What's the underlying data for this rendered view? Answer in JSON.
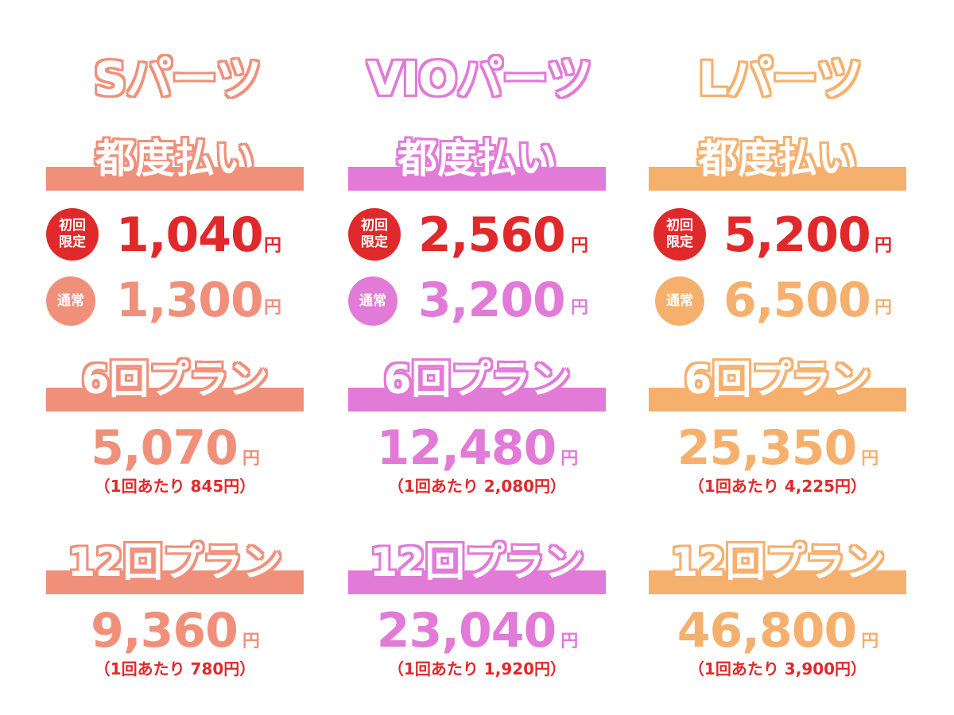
{
  "columns": [
    {
      "title": "Sパーツ",
      "color": "#f0907a",
      "pay_label": "都度払い",
      "first_badge": [
        "初回",
        "限定"
      ],
      "first_price": "1,040",
      "normal_badge": "通常",
      "normal_price": "1,300",
      "yen": "円",
      "plan6_label": "6回プラン",
      "plan6_price": "5,070",
      "plan6_per": "（1回あたり 845円）",
      "plan12_label": "12回プラン",
      "plan12_price": "9,360",
      "plan12_per": "（1回あたり 780円）"
    },
    {
      "title": "VIOパーツ",
      "color": "#e27ad8",
      "pay_label": "都度払い",
      "first_badge": [
        "初回",
        "限定"
      ],
      "first_price": "2,560",
      "normal_badge": "通常",
      "normal_price": "3,200",
      "yen": "円",
      "plan6_label": "6回プラン",
      "plan6_price": "12,480",
      "plan6_per": "（1回あたり 2,080円）",
      "plan12_label": "12回プラン",
      "plan12_price": "23,040",
      "plan12_per": "（1回あたり 1,920円）"
    },
    {
      "title": "Lパーツ",
      "color": "#f6b06e",
      "pay_label": "都度払い",
      "first_badge": [
        "初回",
        "限定"
      ],
      "first_price": "5,200",
      "normal_badge": "通常",
      "normal_price": "6,500",
      "yen": "円",
      "plan6_label": "6回プラン",
      "plan6_price": "25,350",
      "plan6_per": "（1回あたり 4,225円）",
      "plan12_label": "12回プラン",
      "plan12_price": "46,800",
      "plan12_per": "（1回あたり 3,900円）"
    }
  ],
  "accent_red": "#e0292b"
}
